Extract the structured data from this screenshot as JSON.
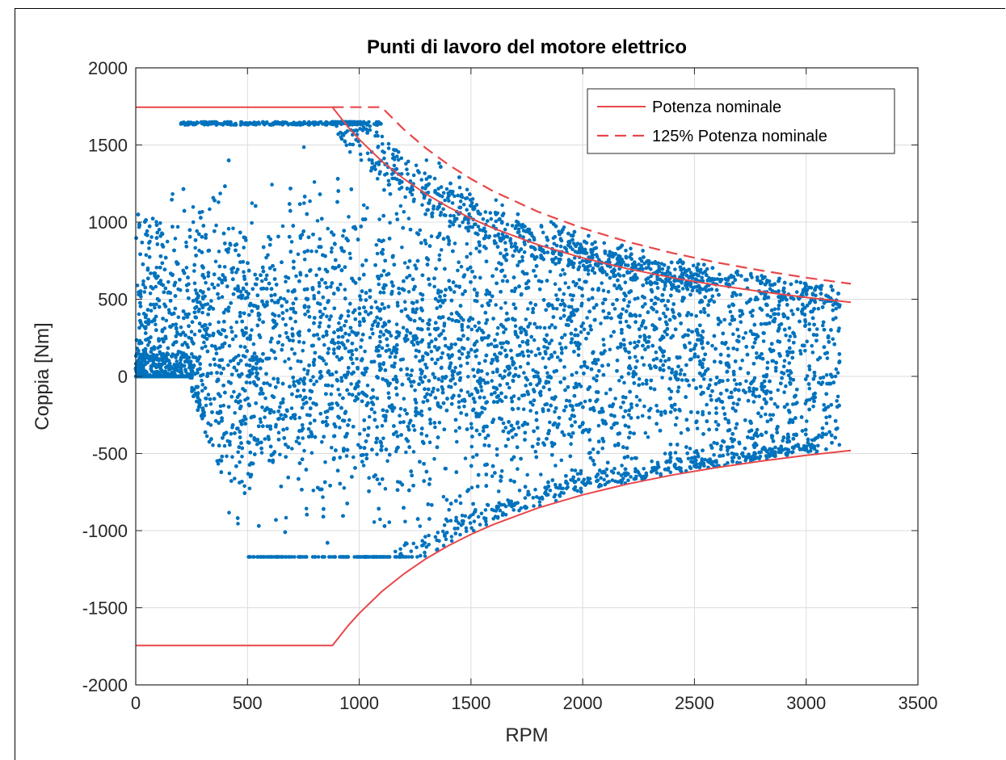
{
  "chart_data": {
    "type": "scatter",
    "title": "Punti di lavoro del motore elettrico",
    "xlabel": "RPM",
    "ylabel": "Coppia [Nm]",
    "xlim": [
      0,
      3500
    ],
    "ylim": [
      -2000,
      2000
    ],
    "x_ticks": [
      "0",
      "500",
      "1000",
      "1500",
      "2000",
      "2500",
      "3000",
      "3500"
    ],
    "y_ticks": [
      "2000",
      "1500",
      "1000",
      "500",
      "0",
      "-500",
      "-1000",
      "-1500",
      "-2000"
    ],
    "grid": true,
    "legend_position": "top-right",
    "colors": {
      "scatter": "#0072BD",
      "limit": "#E8474A"
    },
    "series": [
      {
        "name": "Potenza nominale",
        "kind": "line",
        "style": "solid",
        "upper": {
          "x": [
            0,
            880,
            950,
            1000,
            1100,
            1200,
            1300,
            1400,
            1500,
            1600,
            1800,
            2000,
            2200,
            2400,
            2600,
            2800,
            3000,
            3200
          ],
          "y": [
            1745,
            1745,
            1617,
            1536,
            1396,
            1280,
            1181,
            1097,
            1024,
            960,
            853,
            768,
            698,
            640,
            591,
            549,
            512,
            480
          ]
        },
        "lower": {
          "x": [
            0,
            880,
            950,
            1000,
            1100,
            1200,
            1300,
            1400,
            1500,
            1600,
            1800,
            2000,
            2200,
            2400,
            2600,
            2800,
            3000,
            3200
          ],
          "y": [
            -1745,
            -1745,
            -1617,
            -1536,
            -1396,
            -1280,
            -1181,
            -1097,
            -1024,
            -960,
            -853,
            -768,
            -698,
            -640,
            -591,
            -549,
            -512,
            -480
          ]
        }
      },
      {
        "name": "125% Potenza nominale",
        "kind": "line",
        "style": "dashed",
        "upper": {
          "x": [
            880,
            1100,
            1200,
            1300,
            1400,
            1500,
            1600,
            1800,
            2000,
            2200,
            2400,
            2600,
            2800,
            3000,
            3200
          ],
          "y": [
            1745,
            1745,
            1600,
            1477,
            1371,
            1280,
            1200,
            1067,
            960,
            873,
            800,
            738,
            686,
            640,
            600
          ]
        }
      }
    ]
  }
}
